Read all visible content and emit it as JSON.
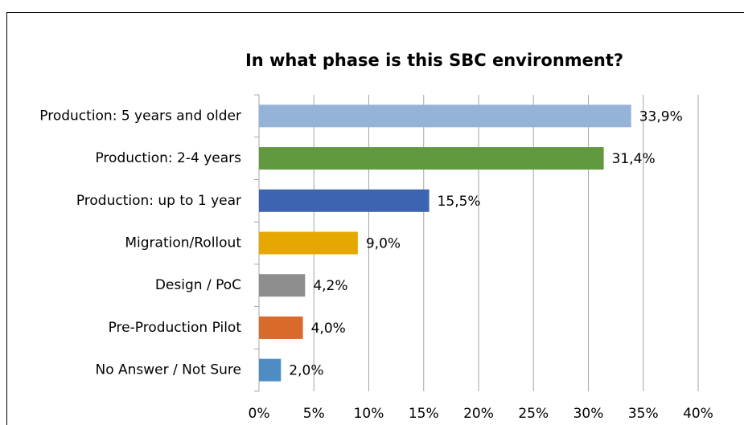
{
  "chart_data": {
    "type": "bar",
    "orientation": "horizontal",
    "title": "In what phase is this SBC environment?",
    "categories": [
      "Production: 5 years and older",
      "Production: 2-4 years",
      "Production: up to 1 year",
      "Migration/Rollout",
      "Design / PoC",
      "Pre-Production Pilot",
      "No Answer / Not Sure"
    ],
    "values": [
      33.9,
      31.4,
      15.5,
      9.0,
      4.2,
      4.0,
      2.0
    ],
    "value_labels": [
      "33,9%",
      "31,4%",
      "15,5%",
      "9,0%",
      "4,2%",
      "4,0%",
      "2,0%"
    ],
    "colors": [
      "#95b3d7",
      "#62993e",
      "#3c64b0",
      "#e6a800",
      "#8e8e8e",
      "#d86a2a",
      "#4e8dc4"
    ],
    "xlim": [
      0,
      40
    ],
    "xticks": [
      {
        "value": 0,
        "label": "0%"
      },
      {
        "value": 5,
        "label": "5%"
      },
      {
        "value": 10,
        "label": "10%"
      },
      {
        "value": 15,
        "label": "15%"
      },
      {
        "value": 20,
        "label": "20%"
      },
      {
        "value": 25,
        "label": "25%"
      },
      {
        "value": 30,
        "label": "30%"
      },
      {
        "value": 35,
        "label": "35%"
      },
      {
        "value": 40,
        "label": "40%"
      }
    ],
    "grid": true
  }
}
